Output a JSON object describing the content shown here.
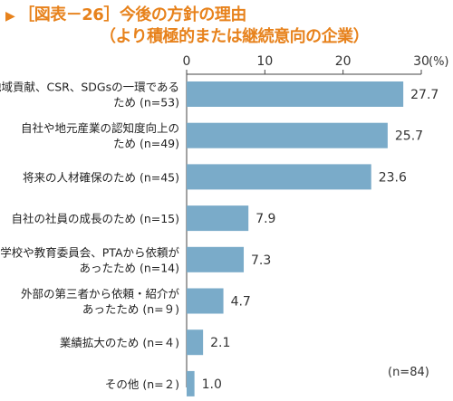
{
  "title_marker": "▶",
  "title_line1": "［図表－26］今後の方針の理由",
  "title_line2": "（より積極的または継続意向の企業）",
  "sample_note": "(n=84)",
  "colors": {
    "title": "#e7821c",
    "bar": "#7aabc9",
    "axis": "#444444"
  },
  "chart_data": {
    "type": "bar",
    "orientation": "horizontal",
    "title": "［図表－26］今後の方針の理由（より積極的または継続意向の企業）",
    "categories": [
      [
        "地域貢献、CSR、SDGsの一環である",
        "ため (n=53)"
      ],
      [
        "自社や地元産業の認知度向上の",
        "ため (n=49)"
      ],
      [
        "将来の人材確保のため (n=45)"
      ],
      [
        "自社の社員の成長のため (n=15)"
      ],
      [
        "学校や教育委員会、PTAから依頼が",
        "あったため (n=14)"
      ],
      [
        "外部の第三者から依頼・紹介が",
        "あったため (n=９)"
      ],
      [
        "業績拡大のため (n=４)"
      ],
      [
        "その他 (n=２)"
      ]
    ],
    "values": [
      27.7,
      25.7,
      23.6,
      7.9,
      7.3,
      4.7,
      2.1,
      1.0
    ],
    "value_labels": [
      "27.7",
      "25.7",
      "23.6",
      "7.9",
      "7.3",
      "4.7",
      "2.1",
      "1.0"
    ],
    "xlim": [
      0,
      30
    ],
    "ticks": [
      0,
      10,
      20,
      30
    ],
    "tick_labels": [
      "0",
      "10",
      "20",
      "30"
    ],
    "unit": "(%)",
    "grid": false
  }
}
